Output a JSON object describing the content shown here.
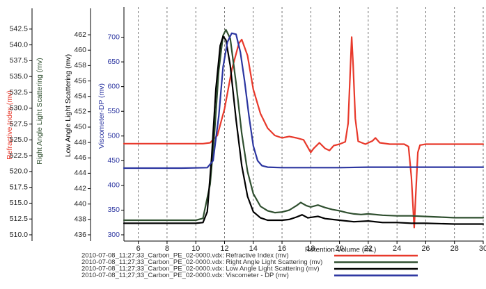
{
  "chart_data": {
    "type": "line",
    "xlabel": "Retention Volume (mL)",
    "xlim": [
      5,
      30
    ],
    "xticks": [
      6,
      8,
      10,
      12,
      14,
      16,
      18,
      20,
      22,
      24,
      26,
      28,
      30
    ],
    "grid": "vertical dashed at each x tick",
    "axes": [
      {
        "id": "ri",
        "label": "Refractive Index (mv)",
        "color": "#e8392b",
        "ticks": [],
        "range": [
          300,
          720
        ]
      },
      {
        "id": "rals",
        "label": "Right Angle Light Scattering (mv)",
        "color": "#2f4f2f",
        "ticks": [
          "510.0",
          "512.5",
          "515.0",
          "517.5",
          "520.0",
          "522.5",
          "525.0",
          "527.5",
          "530.0",
          "532.5",
          "535.0",
          "537.5",
          "540.0",
          "542.5"
        ],
        "range": [
          510,
          543.8
        ]
      },
      {
        "id": "lals",
        "label": "Low Angle Light Scattering (mv)",
        "color": "#000000",
        "ticks": [
          "436",
          "438",
          "440",
          "442",
          "444",
          "446",
          "448",
          "450",
          "452",
          "454",
          "456",
          "458",
          "460",
          "462"
        ],
        "range": [
          436,
          463
        ]
      },
      {
        "id": "visc",
        "label": "Viscometer-DP (mv)",
        "color": "#2b35a0",
        "ticks": [
          "300",
          "350",
          "400",
          "450",
          "500",
          "550",
          "600",
          "650",
          "700"
        ],
        "range": [
          300,
          712
        ]
      }
    ],
    "series": [
      {
        "name": "2010-07-08_11;27;33_Carbon_PE_02-0000.vdx: Refractive Index (mv)",
        "axis": "ri",
        "color": "#e8392b",
        "points": [
          [
            5,
            488
          ],
          [
            9,
            488
          ],
          [
            10.5,
            488
          ],
          [
            11,
            490
          ],
          [
            11.5,
            505
          ],
          [
            12,
            560
          ],
          [
            12.5,
            640
          ],
          [
            13,
            695
          ],
          [
            13.2,
            703
          ],
          [
            13.6,
            670
          ],
          [
            14,
            600
          ],
          [
            14.5,
            550
          ],
          [
            15,
            520
          ],
          [
            15.5,
            505
          ],
          [
            16,
            500
          ],
          [
            16.5,
            503
          ],
          [
            17,
            500
          ],
          [
            17.5,
            496
          ],
          [
            18,
            470
          ],
          [
            18.2,
            478
          ],
          [
            18.6,
            490
          ],
          [
            19,
            478
          ],
          [
            19.3,
            474
          ],
          [
            19.6,
            484
          ],
          [
            20,
            487
          ],
          [
            20.4,
            492
          ],
          [
            20.6,
            530
          ],
          [
            20.75,
            640
          ],
          [
            20.85,
            708
          ],
          [
            20.95,
            650
          ],
          [
            21.1,
            540
          ],
          [
            21.3,
            493
          ],
          [
            21.8,
            487
          ],
          [
            22.3,
            494
          ],
          [
            22.5,
            500
          ],
          [
            22.8,
            490
          ],
          [
            23.5,
            487
          ],
          [
            24.5,
            487
          ],
          [
            24.8,
            482
          ],
          [
            25,
            420
          ],
          [
            25.15,
            340
          ],
          [
            25.2,
            315
          ],
          [
            25.3,
            380
          ],
          [
            25.45,
            470
          ],
          [
            25.6,
            485
          ],
          [
            26,
            487
          ],
          [
            27,
            487
          ],
          [
            28,
            487
          ],
          [
            30,
            487
          ]
        ]
      },
      {
        "name": "2010-07-08_11;27;33_Carbon_PE_02-0000.vdx: Right Angle Light Scattering (mv)",
        "axis": "rals",
        "color": "#2f4f2f",
        "points": [
          [
            5,
            512.3
          ],
          [
            6,
            512.3
          ],
          [
            8,
            512.3
          ],
          [
            10,
            512.3
          ],
          [
            10.5,
            512.6
          ],
          [
            11,
            518
          ],
          [
            11.3,
            526
          ],
          [
            11.6,
            536
          ],
          [
            11.9,
            541.5
          ],
          [
            12.1,
            542.4
          ],
          [
            12.4,
            541
          ],
          [
            12.8,
            534
          ],
          [
            13.2,
            526
          ],
          [
            13.6,
            520
          ],
          [
            14,
            516.5
          ],
          [
            14.5,
            514.5
          ],
          [
            15,
            513.8
          ],
          [
            15.5,
            513.5
          ],
          [
            16,
            513.6
          ],
          [
            16.5,
            513.9
          ],
          [
            17,
            514.6
          ],
          [
            17.3,
            515.1
          ],
          [
            17.7,
            514.6
          ],
          [
            18,
            514.4
          ],
          [
            18.5,
            514.7
          ],
          [
            19,
            514.3
          ],
          [
            19.5,
            514
          ],
          [
            20,
            513.8
          ],
          [
            20.5,
            513.5
          ],
          [
            21,
            513.3
          ],
          [
            21.5,
            513.2
          ],
          [
            22,
            513.3
          ],
          [
            23,
            513.1
          ],
          [
            24,
            513
          ],
          [
            25,
            513
          ],
          [
            26,
            512.9
          ],
          [
            27,
            512.8
          ],
          [
            28,
            512.7
          ],
          [
            29,
            512.7
          ],
          [
            30,
            512.7
          ]
        ]
      },
      {
        "name": "2010-07-08_11;27;33_Carbon_PE_02-0000.vdx: Low Angle Light Scattering (mv)",
        "axis": "lals",
        "color": "#000000",
        "points": [
          [
            5,
            437.5
          ],
          [
            6,
            437.5
          ],
          [
            8,
            437.5
          ],
          [
            10,
            437.5
          ],
          [
            10.5,
            437.6
          ],
          [
            10.8,
            439
          ],
          [
            11.1,
            446
          ],
          [
            11.4,
            455
          ],
          [
            11.7,
            460.6
          ],
          [
            11.9,
            461.8
          ],
          [
            12.1,
            461.3
          ],
          [
            12.4,
            458
          ],
          [
            12.8,
            451
          ],
          [
            13.2,
            445
          ],
          [
            13.6,
            441
          ],
          [
            14,
            439
          ],
          [
            14.5,
            438.2
          ],
          [
            15,
            437.9
          ],
          [
            16,
            437.9
          ],
          [
            16.5,
            438
          ],
          [
            17,
            438.3
          ],
          [
            17.4,
            438.6
          ],
          [
            17.8,
            438.2
          ],
          [
            18.5,
            438.4
          ],
          [
            19,
            438.1
          ],
          [
            20,
            437.9
          ],
          [
            21,
            437.7
          ],
          [
            22,
            437.8
          ],
          [
            23,
            437.6
          ],
          [
            24,
            437.6
          ],
          [
            25,
            437.5
          ],
          [
            26,
            437.5
          ],
          [
            28,
            437.4
          ],
          [
            30,
            437.4
          ]
        ]
      },
      {
        "name": "2010-07-08_11;27;33_Carbon_PE_02-0000.vdx: Viscometer - DP (mv)",
        "axis": "visc",
        "color": "#2b35a0",
        "points": [
          [
            5,
            435
          ],
          [
            9,
            435
          ],
          [
            10.8,
            436
          ],
          [
            11.2,
            450
          ],
          [
            11.6,
            540
          ],
          [
            11.9,
            640
          ],
          [
            12.2,
            690
          ],
          [
            12.5,
            708
          ],
          [
            12.8,
            706
          ],
          [
            13.1,
            670
          ],
          [
            13.4,
            610
          ],
          [
            13.7,
            540
          ],
          [
            14,
            480
          ],
          [
            14.3,
            450
          ],
          [
            14.6,
            440
          ],
          [
            15,
            437
          ],
          [
            16,
            436
          ],
          [
            18,
            436
          ],
          [
            20,
            436
          ],
          [
            22,
            437
          ],
          [
            24,
            437
          ],
          [
            26,
            437
          ],
          [
            28,
            437
          ],
          [
            30,
            437
          ]
        ]
      }
    ],
    "legend_position": "bottom-center"
  }
}
